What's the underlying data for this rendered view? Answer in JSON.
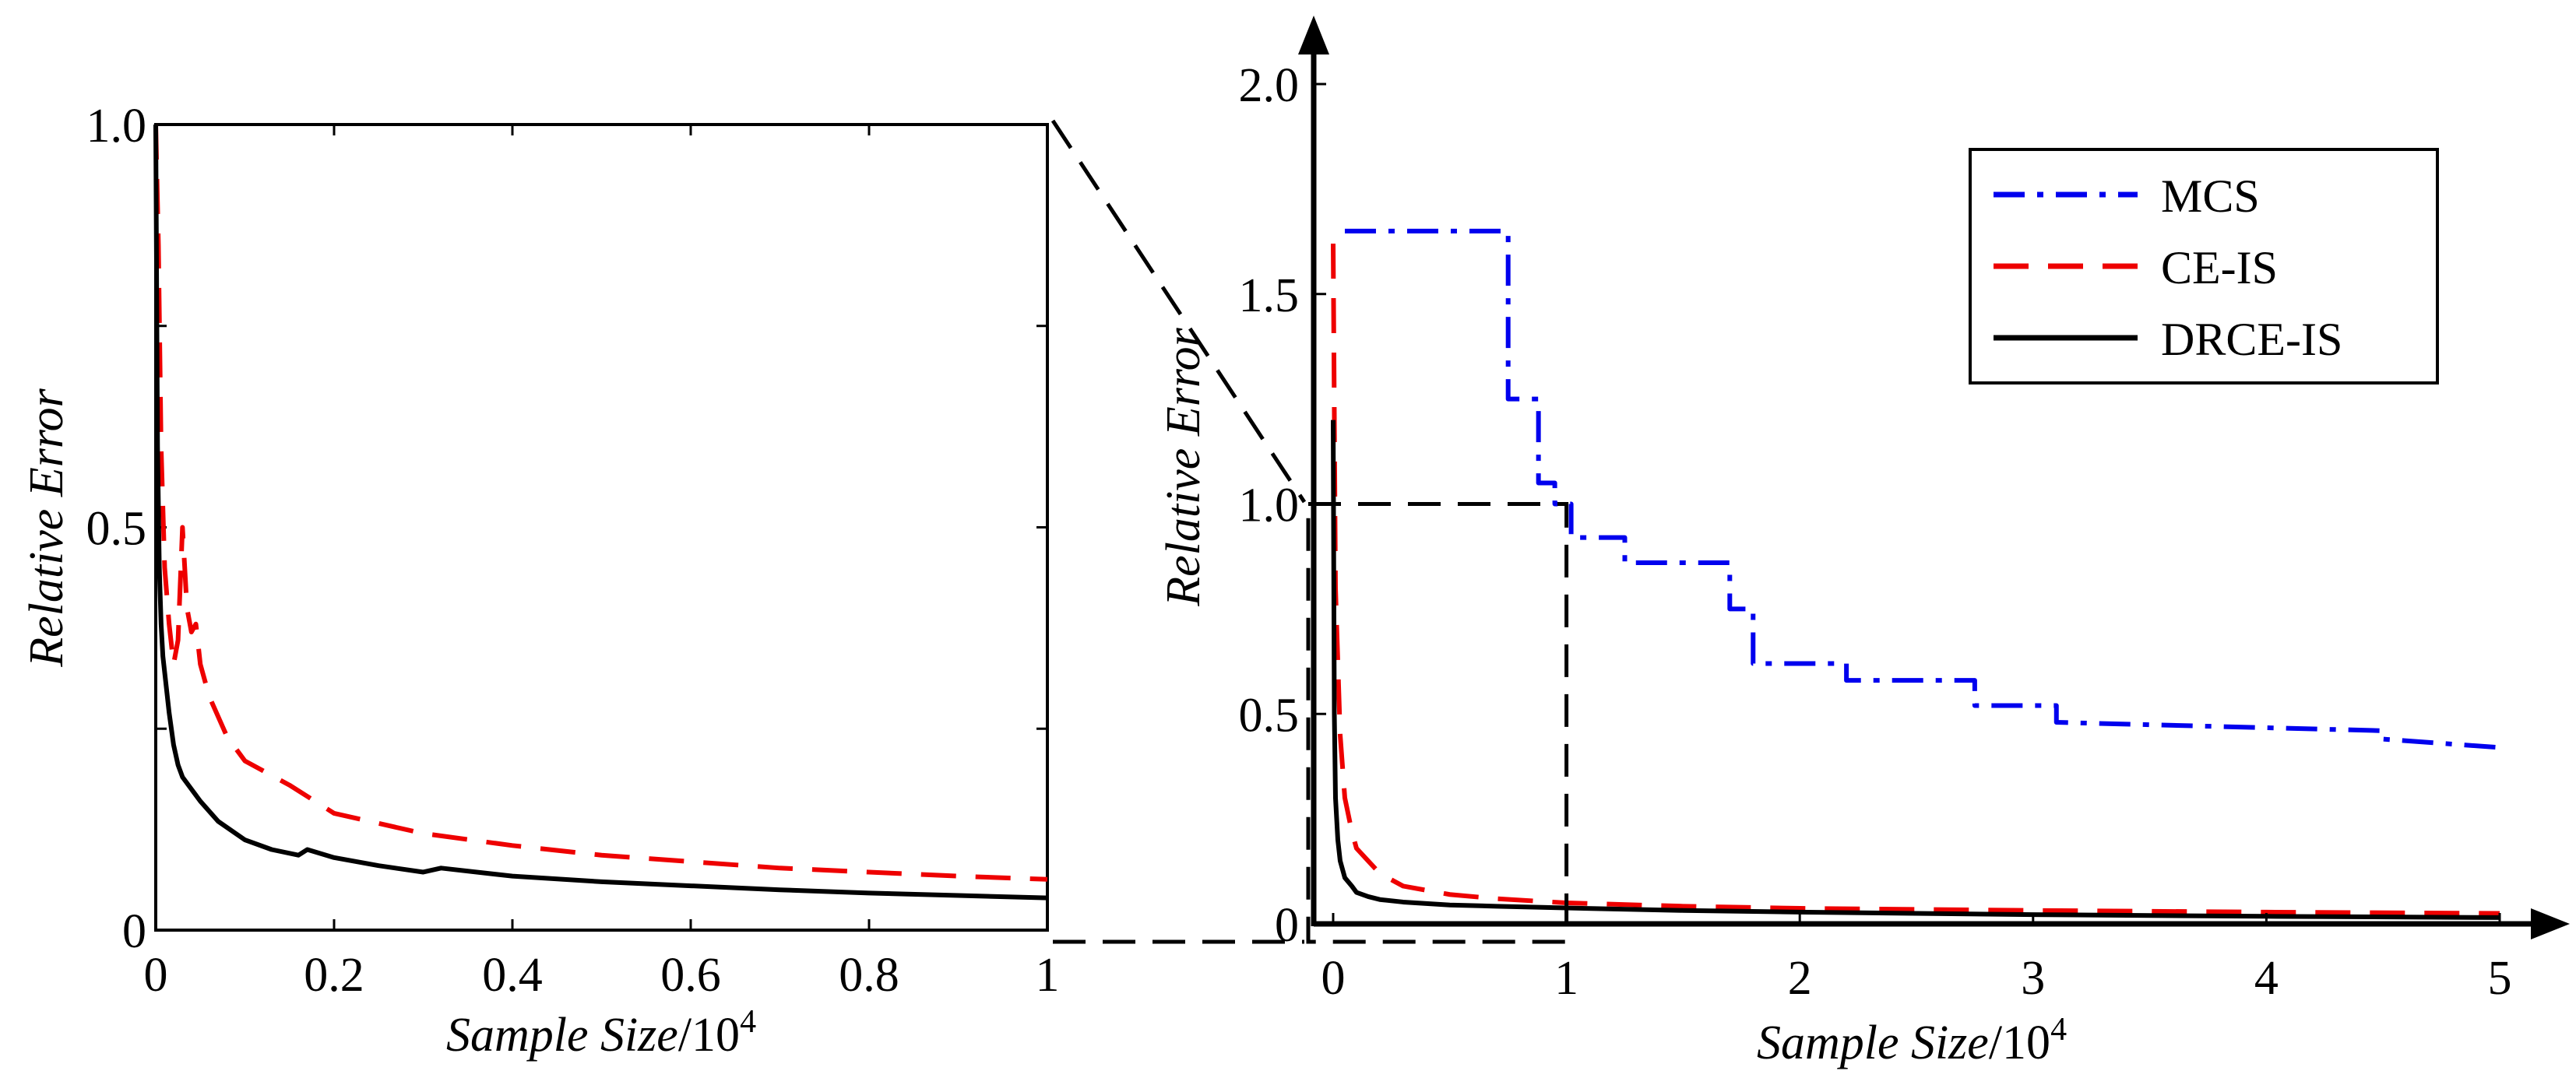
{
  "colors": {
    "mcs": "#0000ee",
    "ceis": "#ee0000",
    "drceis": "#000000"
  },
  "chart_data": [
    {
      "type": "line",
      "name": "left-zoom",
      "xlabel": "Sample Size/10^4",
      "xlabel_italic": "Sample Size",
      "xlabel_unit": "/10",
      "xlabel_exp": "4",
      "ylabel": "Relative Error",
      "xlim": [
        0,
        1
      ],
      "ylim": [
        0,
        1
      ],
      "xticks": [
        0,
        0.2,
        0.4,
        0.6,
        0.8,
        1
      ],
      "xtick_labels": [
        "0",
        "0.2",
        "0.4",
        "0.6",
        "0.8",
        "1"
      ],
      "yticks": [
        0,
        0.5,
        1.0
      ],
      "ytick_labels": [
        "0",
        "0.5",
        "1.0"
      ],
      "series": [
        {
          "name": "CE-IS",
          "x": [
            0,
            0.003,
            0.006,
            0.01,
            0.015,
            0.02,
            0.025,
            0.03,
            0.035,
            0.04,
            0.045,
            0.05,
            0.06,
            0.08,
            0.1,
            0.15,
            0.2,
            0.3,
            0.4,
            0.5,
            0.6,
            0.7,
            0.8,
            0.9,
            1.0
          ],
          "y": [
            1.0,
            0.85,
            0.6,
            0.45,
            0.38,
            0.33,
            0.36,
            0.5,
            0.4,
            0.37,
            0.38,
            0.33,
            0.29,
            0.24,
            0.21,
            0.18,
            0.145,
            0.12,
            0.105,
            0.093,
            0.085,
            0.077,
            0.072,
            0.067,
            0.063
          ]
        },
        {
          "name": "DRCE-IS",
          "x": [
            0,
            0.002,
            0.004,
            0.006,
            0.008,
            0.01,
            0.015,
            0.02,
            0.025,
            0.03,
            0.04,
            0.05,
            0.07,
            0.1,
            0.13,
            0.16,
            0.17,
            0.2,
            0.25,
            0.3,
            0.32,
            0.4,
            0.5,
            0.6,
            0.7,
            0.8,
            0.9,
            1.0
          ],
          "y": [
            1.0,
            0.6,
            0.45,
            0.38,
            0.34,
            0.32,
            0.27,
            0.23,
            0.205,
            0.19,
            0.175,
            0.16,
            0.135,
            0.112,
            0.1,
            0.093,
            0.1,
            0.09,
            0.08,
            0.072,
            0.077,
            0.067,
            0.06,
            0.055,
            0.05,
            0.046,
            0.043,
            0.04
          ]
        }
      ]
    },
    {
      "type": "line",
      "name": "right-full",
      "xlabel": "Sample Size/10^4",
      "xlabel_italic": "Sample Size",
      "xlabel_unit": "/10",
      "xlabel_exp": "4",
      "ylabel": "Relative Error",
      "xlim": [
        0,
        5
      ],
      "ylim": [
        0,
        2
      ],
      "xticks": [
        0,
        1,
        2,
        3,
        4,
        5
      ],
      "xtick_labels": [
        "0",
        "1",
        "2",
        "3",
        "4",
        "5"
      ],
      "yticks": [
        0,
        0.5,
        1.0,
        1.5,
        2.0
      ],
      "ytick_labels": [
        "0",
        "0.5",
        "1.0",
        "1.5",
        "2.0"
      ],
      "zoom_box": {
        "x": [
          0,
          1
        ],
        "y": [
          0,
          1
        ]
      },
      "legend": {
        "position": "top-right",
        "entries": [
          "MCS",
          "CE-IS",
          "DRCE-IS"
        ]
      },
      "series": [
        {
          "name": "MCS",
          "step": true,
          "x": [
            0.05,
            0.75,
            0.75,
            0.88,
            0.88,
            0.95,
            0.95,
            1.02,
            1.02,
            1.25,
            1.25,
            1.7,
            1.7,
            1.8,
            1.8,
            2.2,
            2.2,
            2.75,
            2.75,
            3.1,
            3.1,
            4.5,
            4.5,
            5.0
          ],
          "y": [
            1.65,
            1.65,
            1.25,
            1.25,
            1.05,
            1.05,
            1.0,
            1.0,
            0.92,
            0.92,
            0.86,
            0.86,
            0.75,
            0.75,
            0.62,
            0.62,
            0.58,
            0.58,
            0.52,
            0.52,
            0.48,
            0.46,
            0.44,
            0.42
          ]
        },
        {
          "name": "CE-IS",
          "x": [
            0,
            0.01,
            0.03,
            0.05,
            0.08,
            0.1,
            0.15,
            0.2,
            0.3,
            0.5,
            0.7,
            1.0,
            1.5,
            2.0,
            3.0,
            4.0,
            5.0
          ],
          "y": [
            1.62,
            0.8,
            0.45,
            0.3,
            0.22,
            0.18,
            0.15,
            0.12,
            0.09,
            0.07,
            0.06,
            0.05,
            0.042,
            0.037,
            0.032,
            0.028,
            0.025
          ]
        },
        {
          "name": "DRCE-IS",
          "x": [
            0,
            0.005,
            0.01,
            0.02,
            0.03,
            0.05,
            0.08,
            0.1,
            0.15,
            0.2,
            0.3,
            0.5,
            0.7,
            1.0,
            1.5,
            2.0,
            3.0,
            4.0,
            5.0
          ],
          "y": [
            1.2,
            0.5,
            0.3,
            0.2,
            0.15,
            0.11,
            0.09,
            0.075,
            0.065,
            0.058,
            0.052,
            0.045,
            0.042,
            0.038,
            0.032,
            0.028,
            0.022,
            0.018,
            0.015
          ]
        }
      ]
    }
  ]
}
